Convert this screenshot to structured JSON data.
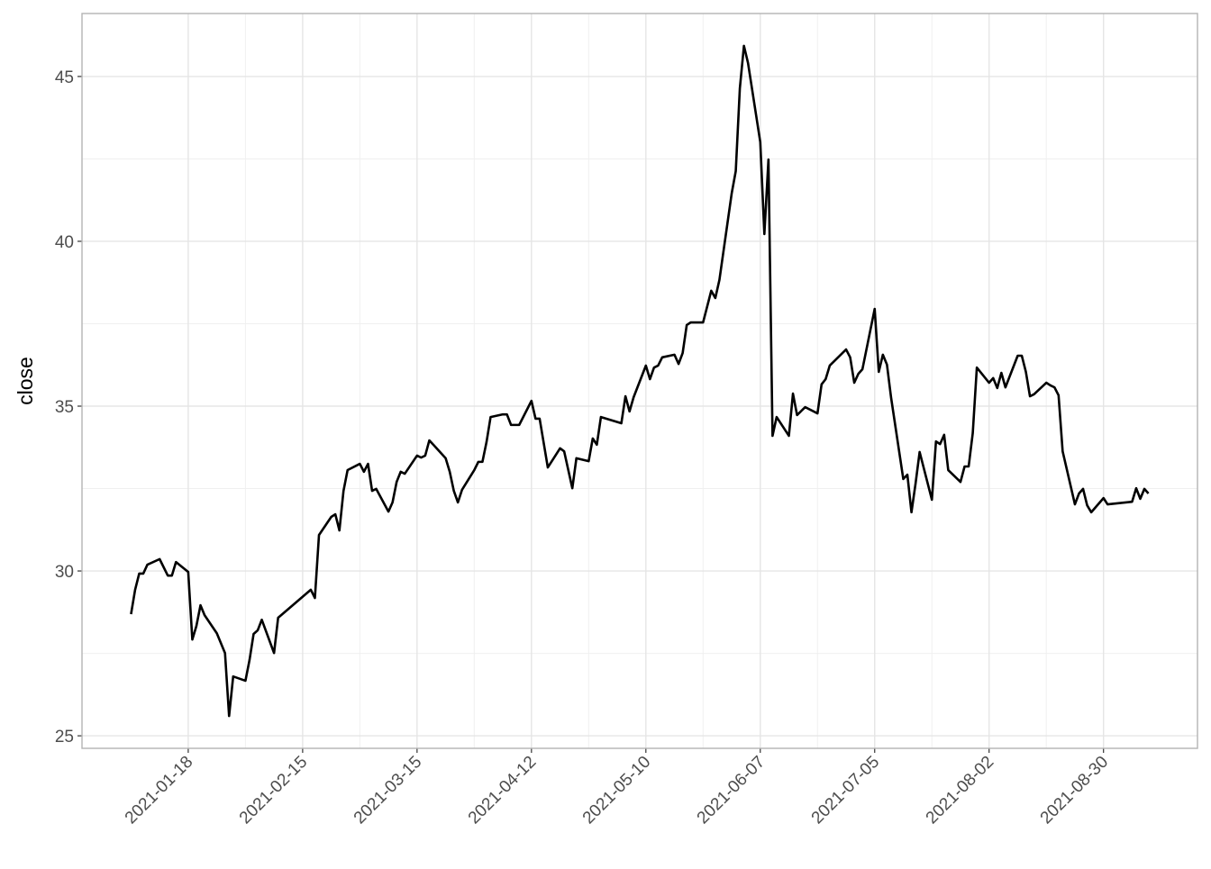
{
  "chart_data": {
    "type": "line",
    "ylabel": "close",
    "color": "#000000",
    "grid": true,
    "x": [
      "2021-01-04",
      "2021-01-05",
      "2021-01-06",
      "2021-01-07",
      "2021-01-08",
      "2021-01-11",
      "2021-01-13",
      "2021-01-14",
      "2021-01-15",
      "2021-01-18",
      "2021-01-19",
      "2021-01-20",
      "2021-01-21",
      "2021-01-22",
      "2021-01-25",
      "2021-01-27",
      "2021-01-28",
      "2021-01-29",
      "2021-02-01",
      "2021-02-02",
      "2021-02-03",
      "2021-02-04",
      "2021-02-05",
      "2021-02-08",
      "2021-02-09",
      "2021-02-17",
      "2021-02-18",
      "2021-02-19",
      "2021-02-22",
      "2021-02-23",
      "2021-02-24",
      "2021-02-25",
      "2021-02-26",
      "2021-03-01",
      "2021-03-02",
      "2021-03-03",
      "2021-03-04",
      "2021-03-05",
      "2021-03-08",
      "2021-03-09",
      "2021-03-10",
      "2021-03-11",
      "2021-03-12",
      "2021-03-15",
      "2021-03-16",
      "2021-03-17",
      "2021-03-18",
      "2021-03-19",
      "2021-03-22",
      "2021-03-23",
      "2021-03-24",
      "2021-03-25",
      "2021-03-26",
      "2021-03-29",
      "2021-03-30",
      "2021-03-31",
      "2021-04-01",
      "2021-04-02",
      "2021-04-05",
      "2021-04-06",
      "2021-04-07",
      "2021-04-09",
      "2021-04-12",
      "2021-04-13",
      "2021-04-14",
      "2021-04-16",
      "2021-04-19",
      "2021-04-20",
      "2021-04-22",
      "2021-04-23",
      "2021-04-26",
      "2021-04-27",
      "2021-04-28",
      "2021-04-29",
      "2021-05-04",
      "2021-05-05",
      "2021-05-06",
      "2021-05-07",
      "2021-05-10",
      "2021-05-11",
      "2021-05-12",
      "2021-05-13",
      "2021-05-14",
      "2021-05-17",
      "2021-05-18",
      "2021-05-19",
      "2021-05-20",
      "2021-05-21",
      "2021-05-24",
      "2021-05-26",
      "2021-05-27",
      "2021-05-28",
      "2021-05-31",
      "2021-06-01",
      "2021-06-02",
      "2021-06-03",
      "2021-06-04",
      "2021-06-07",
      "2021-06-08",
      "2021-06-09",
      "2021-06-10",
      "2021-06-11",
      "2021-06-14",
      "2021-06-15",
      "2021-06-16",
      "2021-06-18",
      "2021-06-21",
      "2021-06-22",
      "2021-06-23",
      "2021-06-24",
      "2021-06-28",
      "2021-06-29",
      "2021-06-30",
      "2021-07-01",
      "2021-07-02",
      "2021-07-05",
      "2021-07-06",
      "2021-07-07",
      "2021-07-08",
      "2021-07-09",
      "2021-07-12",
      "2021-07-13",
      "2021-07-14",
      "2021-07-15",
      "2021-07-16",
      "2021-07-19",
      "2021-07-20",
      "2021-07-21",
      "2021-07-22",
      "2021-07-23",
      "2021-07-26",
      "2021-07-27",
      "2021-07-28",
      "2021-07-29",
      "2021-07-30",
      "2021-08-02",
      "2021-08-03",
      "2021-08-04",
      "2021-08-05",
      "2021-08-06",
      "2021-08-09",
      "2021-08-10",
      "2021-08-11",
      "2021-08-12",
      "2021-08-13",
      "2021-08-16",
      "2021-08-17",
      "2021-08-18",
      "2021-08-19",
      "2021-08-20",
      "2021-08-23",
      "2021-08-24",
      "2021-08-25",
      "2021-08-26",
      "2021-08-27",
      "2021-08-30",
      "2021-08-31",
      "2021-09-06",
      "2021-09-07",
      "2021-09-08",
      "2021-09-09",
      "2021-09-10"
    ],
    "values": [
      28.69,
      29.43,
      29.92,
      29.92,
      30.19,
      30.36,
      29.86,
      29.86,
      30.27,
      29.97,
      27.92,
      28.33,
      28.96,
      28.66,
      28.11,
      27.51,
      25.6,
      26.8,
      26.67,
      27.3,
      28.09,
      28.2,
      28.52,
      27.51,
      28.58,
      29.43,
      29.18,
      31.09,
      31.64,
      31.72,
      31.23,
      32.43,
      33.06,
      33.25,
      33.01,
      33.25,
      32.43,
      32.49,
      31.8,
      32.08,
      32.7,
      33.01,
      32.95,
      33.5,
      33.44,
      33.5,
      33.96,
      33.83,
      33.42,
      33.01,
      32.43,
      32.08,
      32.46,
      33.06,
      33.31,
      33.31,
      33.91,
      34.67,
      34.75,
      34.75,
      34.43,
      34.43,
      35.16,
      34.62,
      34.62,
      33.14,
      33.72,
      33.63,
      32.51,
      33.42,
      33.33,
      34.02,
      33.83,
      34.67,
      34.48,
      35.3,
      34.84,
      35.27,
      36.23,
      35.82,
      36.17,
      36.23,
      36.48,
      36.56,
      36.28,
      36.61,
      37.46,
      37.54,
      37.54,
      38.5,
      38.28,
      38.83,
      41.45,
      42.13,
      44.64,
      45.93,
      45.41,
      43.01,
      40.22,
      42.48,
      34.1,
      34.67,
      34.1,
      35.38,
      34.73,
      34.97,
      34.78,
      35.66,
      35.82,
      36.23,
      36.72,
      36.48,
      35.71,
      35.98,
      36.12,
      37.95,
      36.04,
      36.56,
      36.26,
      35.27,
      32.79,
      32.92,
      31.78,
      32.65,
      33.61,
      32.16,
      33.93,
      33.85,
      34.13,
      33.06,
      32.7,
      33.17,
      33.17,
      34.18,
      36.17,
      35.71,
      35.85,
      35.55,
      36.01,
      35.57,
      36.53,
      36.53,
      36.04,
      35.3,
      35.36,
      35.71,
      35.63,
      35.57,
      35.33,
      33.63,
      32.02,
      32.35,
      32.49,
      31.99,
      31.78,
      32.21,
      32.02,
      32.1,
      32.51,
      32.19,
      32.49,
      32.35
    ],
    "xlim": [
      "2020-12-23",
      "2021-09-22"
    ],
    "xticks": [
      "2021-01-18",
      "2021-02-15",
      "2021-03-15",
      "2021-04-12",
      "2021-05-10",
      "2021-06-07",
      "2021-07-05",
      "2021-08-02",
      "2021-08-30"
    ],
    "ylim": [
      24.62,
      46.91
    ],
    "yticks": [
      25,
      30,
      35,
      40,
      45
    ]
  }
}
